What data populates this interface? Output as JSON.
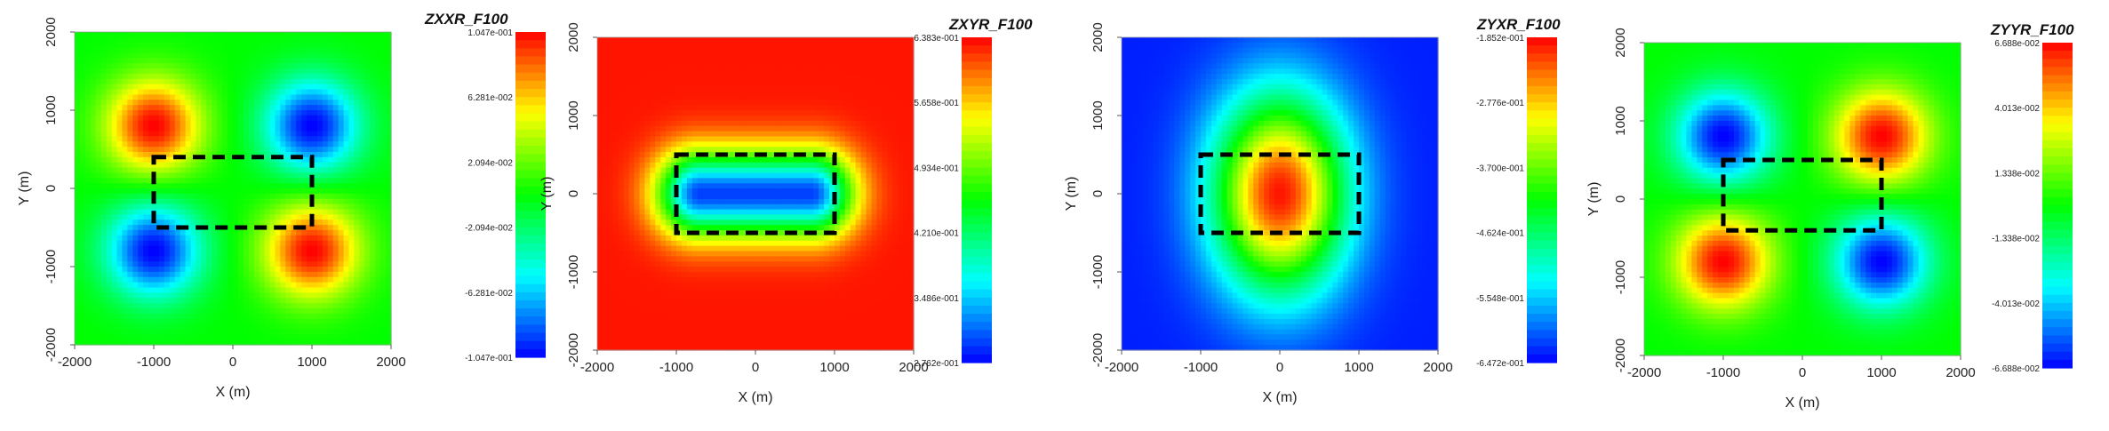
{
  "chart_data": [
    {
      "type": "heatmap",
      "title": "ZXXR_F100",
      "xlabel": "X (m)",
      "ylabel": "Y (m)",
      "xlim": [
        -2000,
        2000
      ],
      "ylim": [
        -2000,
        2000
      ],
      "xticks": [
        "-2000",
        "-1000",
        "0",
        "1000",
        "2000"
      ],
      "yticks": [
        "-2000",
        "-1000",
        "0",
        "1000",
        "2000"
      ],
      "colorbar_ticks": [
        "1.047e-001",
        "6.281e-002",
        "2.094e-002",
        "-2.094e-002",
        "-6.281e-002",
        "-1.047e-001"
      ],
      "vmin": -0.1047,
      "vmax": 0.1047,
      "pattern": "quadrupole_xx",
      "rectangle": {
        "x": [
          -1000,
          1000
        ],
        "y": [
          -500,
          400
        ]
      }
    },
    {
      "type": "heatmap",
      "title": "ZXYR_F100",
      "xlabel": "X (m)",
      "ylabel": "Y (m)",
      "xlim": [
        -2000,
        2000
      ],
      "ylim": [
        -2000,
        2000
      ],
      "xticks": [
        "-2000",
        "-1000",
        "0",
        "1000",
        "2000"
      ],
      "yticks": [
        "-2000",
        "-1000",
        "0",
        "1000",
        "2000"
      ],
      "colorbar_ticks": [
        "6.383e-001",
        "5.658e-001",
        "4.934e-001",
        "4.210e-001",
        "3.486e-001",
        "2.762e-001"
      ],
      "vmin": 0.2762,
      "vmax": 0.6383,
      "pattern": "low_center",
      "rectangle": {
        "x": [
          -1000,
          1000
        ],
        "y": [
          -500,
          500
        ]
      }
    },
    {
      "type": "heatmap",
      "title": "ZYXR_F100",
      "xlabel": "X (m)",
      "ylabel": "Y (m)",
      "xlim": [
        -2000,
        2000
      ],
      "ylim": [
        -2000,
        2000
      ],
      "xticks": [
        "-2000",
        "-1000",
        "0",
        "1000",
        "2000"
      ],
      "yticks": [
        "-2000",
        "-1000",
        "0",
        "1000",
        "2000"
      ],
      "colorbar_ticks": [
        "-1.852e-001",
        "-2.776e-001",
        "-3.700e-001",
        "-4.624e-001",
        "-5.548e-001",
        "-6.472e-001"
      ],
      "vmin": -0.6472,
      "vmax": -0.1852,
      "pattern": "high_center",
      "rectangle": {
        "x": [
          -1000,
          1000
        ],
        "y": [
          -500,
          500
        ]
      }
    },
    {
      "type": "heatmap",
      "title": "ZYYR_F100",
      "xlabel": "X (m)",
      "ylabel": "Y (m)",
      "xlim": [
        -2000,
        2000
      ],
      "ylim": [
        -2000,
        2000
      ],
      "xticks": [
        "-2000",
        "-1000",
        "0",
        "1000",
        "2000"
      ],
      "yticks": [
        "-2000",
        "-1000",
        "0",
        "1000",
        "2000"
      ],
      "colorbar_ticks": [
        "6.688e-002",
        "4.013e-002",
        "1.338e-002",
        "-1.338e-002",
        "-4.013e-002",
        "-6.688e-002"
      ],
      "vmin": -0.06688,
      "vmax": 0.06688,
      "pattern": "quadrupole_yy",
      "rectangle": {
        "x": [
          -1000,
          1000
        ],
        "y": [
          -400,
          500
        ]
      }
    }
  ]
}
